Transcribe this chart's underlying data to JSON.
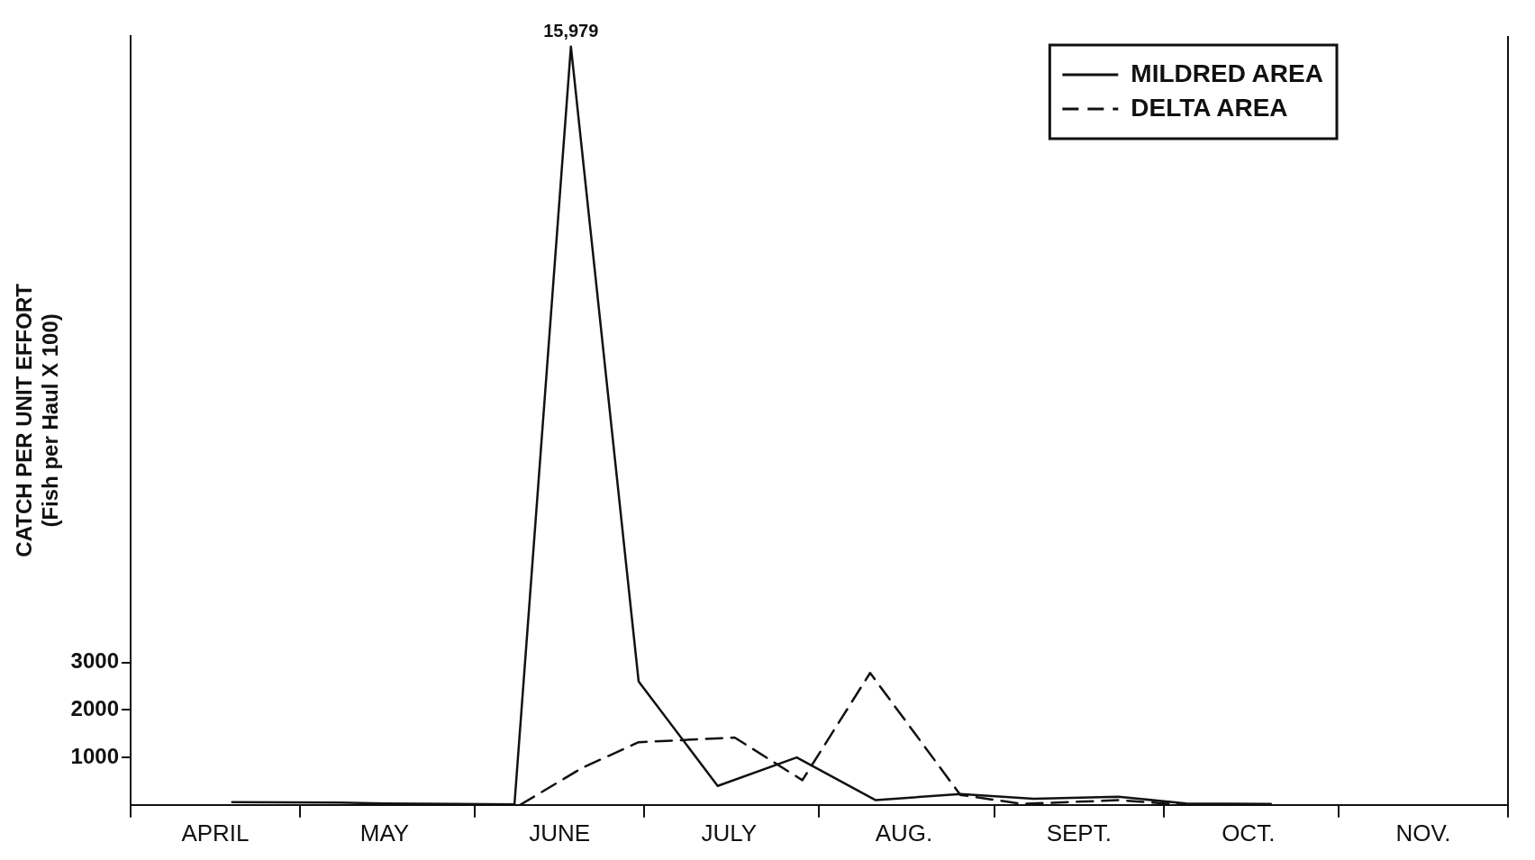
{
  "chart_data": {
    "type": "line",
    "ylabel": "CATCH PER UNIT EFFORT\n(Fish per Haul X 100)",
    "xlim": [
      "--04-01",
      "--12-01"
    ],
    "xticks": [
      {
        "value": "--04-01",
        "label": null
      },
      {
        "value": "--04-16",
        "label": "APRIL"
      },
      {
        "value": "--05-01",
        "label": null
      },
      {
        "value": "--05-16",
        "label": "MAY"
      },
      {
        "value": "--06-01",
        "label": null
      },
      {
        "value": "--06-16",
        "label": "JUNE"
      },
      {
        "value": "--07-01",
        "label": null
      },
      {
        "value": "--07-16",
        "label": "JULY"
      },
      {
        "value": "--08-01",
        "label": null
      },
      {
        "value": "--08-16",
        "label": "AUG."
      },
      {
        "value": "--09-01",
        "label": null
      },
      {
        "value": "--09-16",
        "label": "SEPT."
      },
      {
        "value": "--10-01",
        "label": null
      },
      {
        "value": "--10-16",
        "label": "OCT."
      },
      {
        "value": "--11-01",
        "label": null
      },
      {
        "value": "--11-16",
        "label": "NOV."
      },
      {
        "value": "--12-01",
        "label": null
      }
    ],
    "ylim": [
      0,
      16200
    ],
    "yticks": [
      1000,
      2000,
      3000
    ],
    "legend": "top right",
    "series": [
      {
        "name": "MILDRED AREA",
        "color": "#111111",
        "line_style": "solid",
        "x": [
          "--04-19",
          "--05-08",
          "--05-16",
          "--06-08",
          "--06-18",
          "--06-30",
          "--07-14",
          "--07-28",
          "--08-11",
          "--08-26",
          "--09-08",
          "--09-23",
          "--10-05",
          "--10-20"
        ],
        "values": [
          60,
          50,
          30,
          10,
          15979,
          2600,
          400,
          1000,
          100,
          230,
          130,
          170,
          30,
          20
        ],
        "value_labels": [
          null,
          null,
          null,
          null,
          "15,979",
          null,
          null,
          null,
          null,
          null,
          null,
          null,
          null,
          null
        ]
      },
      {
        "name": "DELTA AREA",
        "color": "#111111",
        "line_style": "dashed",
        "x": [
          "--06-09",
          "--06-20",
          "--06-30",
          "--07-17",
          "--07-29",
          "--08-10",
          "--08-26",
          "--09-06",
          "--09-23",
          "--10-05",
          "--10-18"
        ],
        "values": [
          0,
          780,
          1320,
          1420,
          520,
          2780,
          210,
          20,
          100,
          0,
          0
        ]
      }
    ]
  }
}
